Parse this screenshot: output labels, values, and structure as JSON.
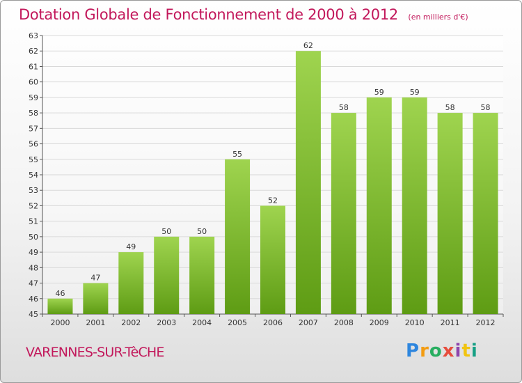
{
  "header": {
    "title": "Dotation Globale de Fonctionnement de 2000 à 2012",
    "unit": "(en milliers d'€)"
  },
  "footer": {
    "commune": "VARENNES-SUR-TèCHE",
    "logo_letters": [
      "P",
      "r",
      "o",
      "x",
      "i",
      "t",
      "i"
    ]
  },
  "colors": {
    "title": "#c2185b",
    "bar_light": "#9fd44f",
    "bar_dark": "#5e9c14",
    "grid": "#d9d9d9"
  },
  "chart_data": {
    "type": "bar",
    "title": "Dotation Globale de Fonctionnement de 2000 à 2012",
    "subtitle": "(en milliers d'€)",
    "xlabel": "",
    "ylabel": "",
    "categories": [
      "2000",
      "2001",
      "2002",
      "2003",
      "2004",
      "2005",
      "2006",
      "2007",
      "2008",
      "2009",
      "2010",
      "2011",
      "2012"
    ],
    "values": [
      46,
      47,
      49,
      50,
      50,
      55,
      52,
      62,
      58,
      59,
      59,
      58,
      58
    ],
    "ylim": [
      45,
      63
    ],
    "yticks": [
      45,
      46,
      47,
      48,
      49,
      50,
      51,
      52,
      53,
      54,
      55,
      56,
      57,
      58,
      59,
      60,
      61,
      62,
      63
    ],
    "grid": true,
    "data_labels": true
  }
}
